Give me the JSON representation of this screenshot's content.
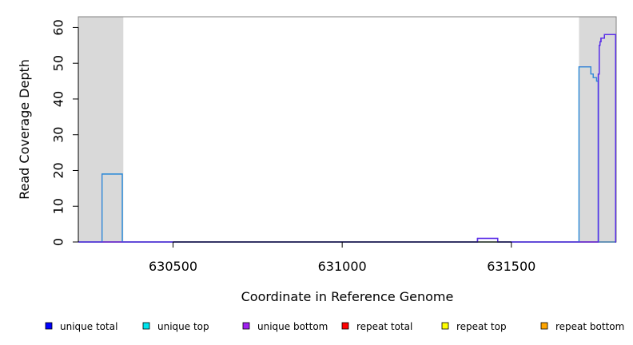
{
  "chart_data": {
    "type": "line",
    "title": "",
    "xlabel": "Coordinate in Reference Genome",
    "ylabel": "Read Coverage Depth",
    "xlim": [
      630220,
      631810
    ],
    "ylim": [
      0,
      63
    ],
    "x_ticks": [
      630500,
      631000,
      631500
    ],
    "y_ticks": [
      0,
      10,
      20,
      30,
      40,
      50,
      60
    ],
    "shaded_regions": [
      {
        "x0": 630220,
        "x1": 630353,
        "color": "#d9d9d9"
      },
      {
        "x0": 631700,
        "x1": 631810,
        "color": "#d9d9d9"
      }
    ],
    "series": [
      {
        "name": "unique total",
        "color": "#0000ff",
        "x": [
          630220,
          631400,
          631400,
          631460,
          631460,
          631757,
          631757,
          631760,
          631760,
          631762,
          631762,
          631765,
          631765,
          631775,
          631775,
          631790,
          631790,
          631808,
          631808,
          631810
        ],
        "y": [
          0,
          0,
          1,
          1,
          0,
          0,
          47,
          47,
          55,
          55,
          56,
          56,
          57,
          57,
          58,
          58,
          58,
          58,
          0,
          0
        ]
      },
      {
        "name": "unique top",
        "color": "#00e5ee",
        "x": [
          630220,
          630290,
          630290,
          630350,
          630350,
          631700,
          631700,
          631735,
          631735,
          631742,
          631742,
          631752,
          631752,
          631757,
          631757,
          631810
        ],
        "y": [
          0,
          0,
          19,
          19,
          0,
          0,
          49,
          49,
          47,
          47,
          46,
          46,
          45,
          45,
          0,
          0
        ]
      },
      {
        "name": "unique bottom",
        "color": "#a020f0",
        "x": [
          630220,
          631400,
          631400,
          631460,
          631460,
          631757,
          631757,
          631760,
          631760,
          631762,
          631762,
          631765,
          631765,
          631775,
          631775,
          631808,
          631808,
          631810
        ],
        "y": [
          0,
          0,
          1,
          1,
          0,
          0,
          47,
          47,
          55,
          55,
          56,
          56,
          57,
          57,
          58,
          58,
          0,
          0
        ]
      },
      {
        "name": "repeat total",
        "color": "#ff0000",
        "x": [
          630220,
          631810
        ],
        "y": [
          0,
          0
        ]
      },
      {
        "name": "repeat top",
        "color": "#ffff00",
        "x": [
          630220,
          631810
        ],
        "y": [
          0,
          0
        ]
      },
      {
        "name": "repeat bottom",
        "color": "#ffa500",
        "x": [
          630220,
          631810
        ],
        "y": [
          0,
          0
        ]
      }
    ],
    "legend": {
      "placement": "bottom",
      "entries": [
        {
          "label": "unique total",
          "color": "#0000ff"
        },
        {
          "label": "unique top",
          "color": "#00e5ee"
        },
        {
          "label": "unique bottom",
          "color": "#a020f0"
        },
        {
          "label": "repeat total",
          "color": "#ff0000"
        },
        {
          "label": "repeat top",
          "color": "#ffff00"
        },
        {
          "label": "repeat bottom",
          "color": "#ffa500"
        }
      ]
    }
  }
}
